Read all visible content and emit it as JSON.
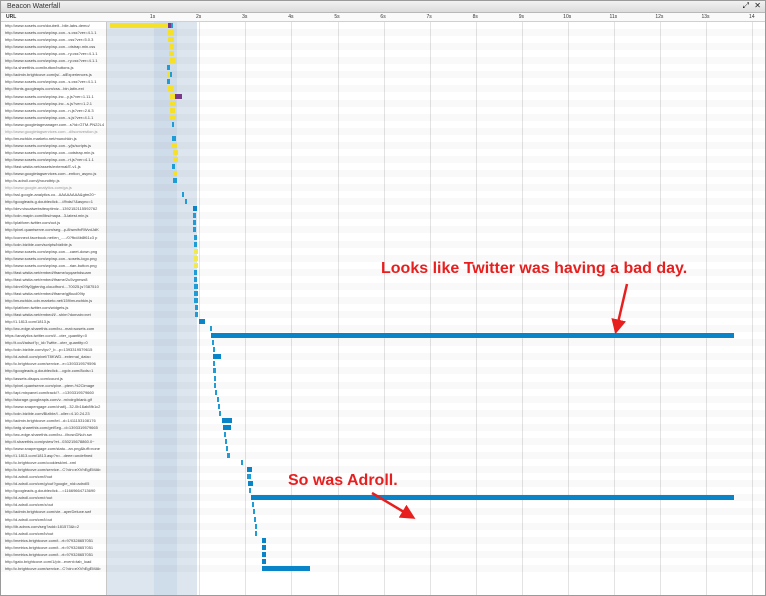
{
  "window": {
    "title": "Beacon Waterfall",
    "controls": [
      "⤢",
      "✕"
    ]
  },
  "header": {
    "url_label": "URL",
    "ticks": [
      "1s",
      "2s",
      "3s",
      "4s",
      "5s",
      "6s",
      "7s",
      "8s",
      "9s",
      "10s",
      "11s",
      "12s",
      "13s",
      "14"
    ]
  },
  "colors": {
    "blocked": "#f5e12a",
    "dns": "#7a3a8a",
    "connect": "#1f9bd6",
    "wait": "#f2e94a",
    "receive": "#0a84c8",
    "load_band": "#dde6ef"
  },
  "requests": [
    {
      "url": "http://www.sosets.com/doubeit...bile-labs-demo/",
      "segs": [
        [
          "blocked",
          0.07,
          1.32
        ],
        [
          "dns",
          1.32,
          1.38
        ],
        [
          "connect",
          1.38,
          1.43
        ]
      ]
    },
    {
      "url": "http://www.sosets.com/wp/wp-con...s.css?ver=4.1.1",
      "segs": [
        [
          "blocked",
          1.32,
          1.45
        ]
      ]
    },
    {
      "url": "http://www.sosets.com/wp/wp-con...css?ver=5.0.3",
      "segs": [
        [
          "blocked",
          1.32,
          1.45
        ]
      ]
    },
    {
      "url": "http://www.sosets.com/wp/wp-con...otstrap.min.css",
      "segs": [
        [
          "blocked",
          1.34,
          1.46
        ]
      ]
    },
    {
      "url": "http://www.sosets.com/wp/wp-con...ry.css?ver=4.1.1",
      "segs": [
        [
          "blocked",
          1.35,
          1.46
        ]
      ]
    },
    {
      "url": "http://www.sosets.com/wp/wp-con...ry.css?ver=4.1.1",
      "segs": [
        [
          "blocked",
          1.36,
          1.47
        ]
      ]
    },
    {
      "url": "http://a.sheetthis.com/button/buttons.js",
      "segs": [
        [
          "connect",
          1.3,
          1.36
        ]
      ]
    },
    {
      "url": "http://admin.brightcove.com/js/...alExperiences.js",
      "segs": [
        [
          "blocked",
          1.3,
          1.36
        ],
        [
          "connect",
          1.36,
          1.42
        ]
      ]
    },
    {
      "url": "http://www.sosets.com/wp/wp-con...s.css?ver=4.1.1",
      "segs": [
        [
          "connect",
          1.3,
          1.36
        ]
      ]
    },
    {
      "url": "http://fonts.googleapis.com/css...bin,latin-ext",
      "segs": [
        [
          "blocked",
          1.33,
          1.44
        ]
      ]
    },
    {
      "url": "http://www.sosets.com/wp/wp-inc...y.js?ver=1.11.1",
      "segs": [
        [
          "blocked",
          1.36,
          1.48
        ],
        [
          "dns",
          1.48,
          1.62
        ]
      ]
    },
    {
      "url": "http://www.sosets.com/wp/wp-inc...s.js?ver=1.2.1",
      "segs": [
        [
          "blocked",
          1.36,
          1.49
        ]
      ]
    },
    {
      "url": "http://www.sosets.com/wp/wp-con...n.js?ver=2.6.3",
      "segs": [
        [
          "blocked",
          1.36,
          1.48
        ]
      ]
    },
    {
      "url": "http://www.sosets.com/wp/wp-con...s.js?ver=4.1.1",
      "segs": [
        [
          "blocked",
          1.37,
          1.49
        ]
      ]
    },
    {
      "url": "http://www.googletagmanager.com...s?id=GTM-PN22L4",
      "segs": [
        [
          "connect",
          1.4,
          1.46
        ]
      ]
    },
    {
      "url": "http://www.googletagservices.com...d/tsomvestion.js",
      "dim": true,
      "segs": []
    },
    {
      "url": "http://munchkin.marketo.net/munchkin.js",
      "segs": [
        [
          "connect",
          1.41,
          1.49
        ]
      ]
    },
    {
      "url": "http://www.sosets.com/wp/wp-con...y/js/scripts.js",
      "segs": [
        [
          "blocked",
          1.42,
          1.52
        ]
      ]
    },
    {
      "url": "http://www.sosets.com/wp/wp-con...ootstrap.min.js",
      "segs": [
        [
          "blocked",
          1.43,
          1.54
        ]
      ]
    },
    {
      "url": "http://www.sosets.com/wp/wp-con...rt.js?ver=4.1.1",
      "segs": [
        [
          "blocked",
          1.43,
          1.55
        ]
      ]
    },
    {
      "url": "http://fast.wistia.net/assets/external/E-v1.js",
      "segs": [
        [
          "connect",
          1.41,
          1.48
        ]
      ]
    },
    {
      "url": "http://www.googletagservices.com...ention_async.js",
      "segs": [
        [
          "blocked",
          1.44,
          1.52
        ]
      ]
    },
    {
      "url": "http://s.adroll.com/j/roundtrip.js",
      "segs": [
        [
          "connect",
          1.44,
          1.51
        ]
      ]
    },
    {
      "url": "http://www.google-analytics.com/ga.js",
      "dim": true,
      "segs": []
    },
    {
      "url": "http://ssl.google-analytics.co...AAAAAAAA&gtm20~",
      "segs": [
        [
          "connect",
          1.63,
          1.68
        ]
      ]
    },
    {
      "url": "http://googleads.g.doubleclick....//fbds/?&async=1",
      "segs": [
        [
          "connect",
          1.69,
          1.74
        ]
      ]
    },
    {
      "url": "http://dev.visualwebsiteoptimiz...1392152115592762",
      "segs": [
        [
          "receive",
          1.86,
          1.95
        ]
      ]
    },
    {
      "url": "http://cdn.mapin.com/libs/mapa...3-latest.min.js",
      "segs": [
        [
          "connect",
          1.86,
          1.94
        ]
      ]
    },
    {
      "url": "http://platform.twitter.com/oct.js",
      "segs": [
        [
          "connect",
          1.87,
          1.94
        ]
      ]
    },
    {
      "url": "http://pixel.quantserve.com/seg...p-8hwn/fxRWvdJdK",
      "segs": [
        [
          "connect",
          1.87,
          1.94
        ]
      ]
    },
    {
      "url": "http://connect.facebook.net/en_...../0?fbd4b8f61c3 p",
      "segs": [
        [
          "connect",
          1.88,
          1.95
        ]
      ]
    },
    {
      "url": "http://cdn.bizible.com/scripts/bizible.js",
      "segs": [
        [
          "connect",
          1.88,
          1.95
        ]
      ]
    },
    {
      "url": "http://www.sosets.com/wp/wp-con...-caret-down.png",
      "segs": [
        [
          "wait",
          1.88,
          1.97
        ]
      ]
    },
    {
      "url": "http://www.sosets.com/wp/wp-con...sosets-logo.png",
      "segs": [
        [
          "wait",
          1.88,
          1.97
        ]
      ]
    },
    {
      "url": "http://www.sosets.com/wp/wp-con...-rian-button.png",
      "segs": [
        [
          "wait",
          1.88,
          1.97
        ]
      ]
    },
    {
      "url": "http://fast.wistia.net/embed/iframe/uyqaehdsuam",
      "segs": [
        [
          "connect",
          1.88,
          1.96
        ]
      ]
    },
    {
      "url": "http://fast.wistia.net/embed/iframe/2u5vgnrwx8",
      "segs": [
        [
          "connect",
          1.89,
          1.96
        ]
      ]
    },
    {
      "url": "http://dnrr09ty0jgtenhg.cloudfront....70025.js?387510",
      "segs": [
        [
          "connect",
          1.89,
          1.97
        ]
      ]
    },
    {
      "url": "http://fast.wistia.net/embed/iframe/gjfkucl09ty",
      "segs": [
        [
          "connect",
          1.89,
          1.97
        ]
      ]
    },
    {
      "url": "http://munchkin-cdn.marketo.net/159/munchkin.js",
      "segs": [
        [
          "connect",
          1.89,
          1.97
        ]
      ]
    },
    {
      "url": "http://platform.twitter.com/widgets.js",
      "segs": [
        [
          "connect",
          1.9,
          1.98
        ]
      ]
    },
    {
      "url": "http://fast.wistia.net/embed/l/...shim?domain=net",
      "segs": [
        [
          "connect",
          1.9,
          1.98
        ]
      ]
    },
    {
      "url": "http://1.1813.com/1813.js",
      "segs": [
        [
          "receive",
          2.0,
          2.12
        ]
      ]
    },
    {
      "url": "http://wc-edge.sharethis.com/bu...mat=sosets.com",
      "segs": [
        [
          "connect",
          2.24,
          2.28
        ]
      ]
    },
    {
      "url": "https://analytics.twitter.com/i/...oter_quantity=0",
      "segs": [
        [
          "receive",
          2.26,
          13.6
        ]
      ]
    },
    {
      "url": "http://t.co/i/adsct?p_id=Twitte...oter_quantity=0",
      "segs": [
        [
          "connect",
          2.28,
          2.32
        ]
      ]
    },
    {
      "url": "http://cdn.bizible.com/ipv?_b...p=1393319579615",
      "segs": [
        [
          "connect",
          2.3,
          2.34
        ]
      ]
    },
    {
      "url": "http://d.adroll.com/pixel/T8KWD...external_data=",
      "segs": [
        [
          "receive",
          2.3,
          2.48
        ]
      ]
    },
    {
      "url": "http://c.brightcove.com/service...e=1393319579596",
      "segs": [
        [
          "connect",
          2.31,
          2.35
        ]
      ]
    },
    {
      "url": "http://googleads.g.doubleclick....cgdx.com/8cds=1",
      "segs": [
        [
          "connect",
          2.31,
          2.36
        ]
      ]
    },
    {
      "url": "http://assets.disqus.com/count.js",
      "segs": [
        [
          "connect",
          2.32,
          2.36
        ]
      ]
    },
    {
      "url": "http://pixel.quantserve.com/pixe...ptem-%2Cimage",
      "segs": [
        [
          "connect",
          2.33,
          2.37
        ]
      ]
    },
    {
      "url": "http://api.mixpanel.com/track/?...=1393319579660",
      "segs": [
        [
          "connect",
          2.34,
          2.38
        ]
      ]
    },
    {
      "url": "http://storage.googleapis.com/v...m/vdrg/blank.gif",
      "segs": [
        [
          "connect",
          2.38,
          2.42
        ]
      ]
    },
    {
      "url": "http://www.snapengage.com/chat/j...32-0b16ab8fb1c2",
      "segs": [
        [
          "connect",
          2.4,
          2.44
        ]
      ]
    },
    {
      "url": "http://cdn.bizible.com/Bizible/l...oller=4.10.24.23",
      "segs": [
        [
          "connect",
          2.44,
          2.48
        ]
      ]
    },
    {
      "url": "http://admin.brightcove.com/tel...d=1411153108176",
      "segs": [
        [
          "receive",
          2.5,
          2.72
        ]
      ]
    },
    {
      "url": "http://wtg.sharethis.com/getSeg...d=1393319579665",
      "segs": [
        [
          "receive",
          2.52,
          2.68
        ]
      ]
    },
    {
      "url": "http://wc-edge.sharethis.com/bu...i/hcsnDNuh.sw",
      "segs": [
        [
          "connect",
          2.54,
          2.58
        ]
      ]
    },
    {
      "url": "http://l.sharethis.com/pview?et...030215678860.0~",
      "segs": [
        [
          "connect",
          2.56,
          2.6
        ]
      ]
    },
    {
      "url": "http://www.snapengage.com/statu...an.png&tuff=none",
      "segs": [
        [
          "connect",
          2.58,
          2.63
        ]
      ]
    },
    {
      "url": "http://1.1813.com/1813.asp?n=...deee=undefined",
      "segs": [
        [
          "connect",
          2.6,
          2.66
        ]
      ]
    },
    {
      "url": "http://c.brightcove.com/cookiesk/ml-.xml",
      "segs": [
        [
          "connect",
          2.9,
          2.93
        ]
      ]
    },
    {
      "url": "http://c.brightcove.com/service...C?cin=eXVhEgEMAb",
      "segs": [
        [
          "receive",
          3.04,
          3.14
        ]
      ]
    },
    {
      "url": "http://d.adroll.com/cm/f/out",
      "segs": [
        [
          "connect",
          3.04,
          3.12
        ]
      ]
    },
    {
      "url": "http://d.adroll.com/cm/g/out?google_nid=adroll5",
      "segs": [
        [
          "receive",
          3.06,
          3.16
        ]
      ]
    },
    {
      "url": "http://googleads.g.doubleclick....=11669664713690",
      "segs": [
        [
          "connect",
          3.08,
          3.12
        ]
      ]
    },
    {
      "url": "http://d.adroll.com/cm/r/out",
      "segs": [
        [
          "receive",
          3.12,
          13.6
        ]
      ]
    },
    {
      "url": "http://d.adroll.com/cm/x/out",
      "segs": [
        [
          "connect",
          3.14,
          3.18
        ]
      ]
    },
    {
      "url": "http://admin.brightcove.com/vie...ayerDeluxe.swf",
      "segs": [
        [
          "connect",
          3.16,
          3.2
        ]
      ]
    },
    {
      "url": "http://d.adroll.com/cm/l/out",
      "segs": [
        [
          "connect",
          3.18,
          3.22
        ]
      ]
    },
    {
      "url": "http://ib.adnxs.com/seg?add=181573&t=2",
      "segs": [
        [
          "connect",
          3.2,
          3.24
        ]
      ]
    },
    {
      "url": "http://d.adroll.com/cm/b/out",
      "segs": [
        [
          "connect",
          3.22,
          3.26
        ]
      ]
    },
    {
      "url": "http://metrics.brightcove.com/t...rt=979328657051",
      "segs": [
        [
          "receive",
          3.36,
          3.44
        ]
      ]
    },
    {
      "url": "http://metrics.brightcove.com/t...rt=979328657051",
      "segs": [
        [
          "receive",
          3.36,
          3.44
        ]
      ]
    },
    {
      "url": "http://metrics.brightcove.com/t...rt=979328657051",
      "segs": [
        [
          "receive",
          3.36,
          3.44
        ]
      ]
    },
    {
      "url": "http://gato.brightcove.com/1/pix...event=tab_load",
      "segs": [
        [
          "receive",
          3.36,
          3.44
        ]
      ]
    },
    {
      "url": "http://c.brightcove.com/service...C?cin=eXVhEgEMAb",
      "segs": [
        [
          "receive",
          3.36,
          4.4
        ]
      ]
    }
  ],
  "annotations": [
    {
      "text": "Looks like Twitter was having a bad day."
    },
    {
      "text": "So was Adroll."
    }
  ]
}
